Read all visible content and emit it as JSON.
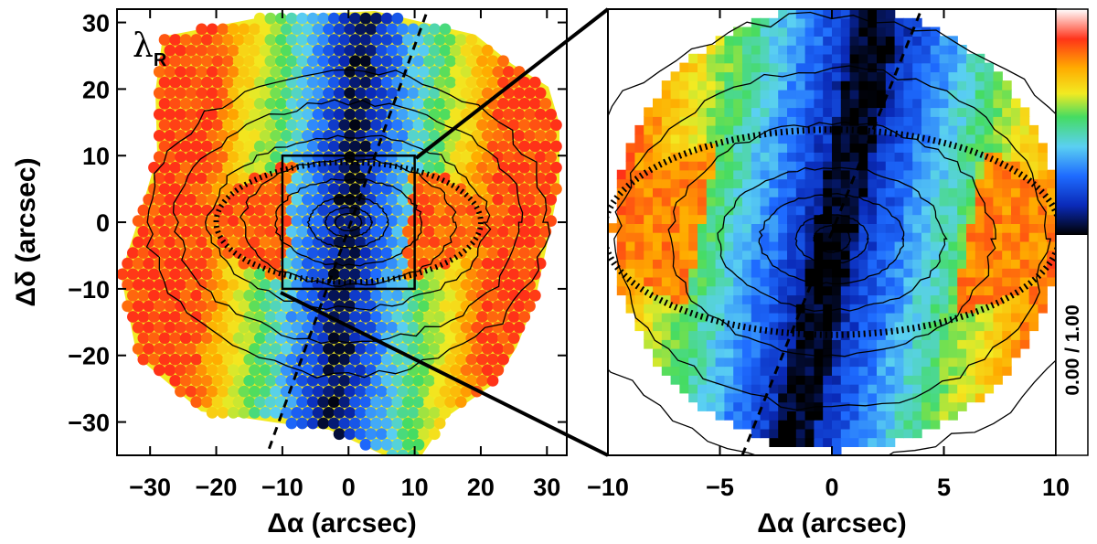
{
  "chart_data": [
    {
      "type": "heatmap",
      "panel": "left",
      "quantity_label": "λ",
      "quantity_subscript": "R",
      "xlabel": "Δα  (arcsec)",
      "ylabel": "Δδ  (arcsec)",
      "xlim": [
        -35,
        33
      ],
      "ylim": [
        -35,
        32
      ],
      "xticks": [
        -30,
        -20,
        -10,
        0,
        10,
        20,
        30
      ],
      "yticks": [
        -30,
        -20,
        -10,
        0,
        10,
        20,
        30
      ],
      "xtick_labels": [
        "−30",
        "−20",
        "−10",
        "0",
        "10",
        "20",
        "30"
      ],
      "ytick_labels": [
        "−30",
        "−20",
        "−10",
        "0",
        "10",
        "20",
        "30"
      ],
      "zoom_box": {
        "x": [
          -10,
          10
        ],
        "y": [
          -10,
          10
        ]
      },
      "dashed_axis": {
        "from": [
          -12,
          -34
        ],
        "to": [
          12,
          32
        ]
      },
      "ellipse": {
        "center": [
          0,
          0
        ],
        "semi_major": 20,
        "semi_minor": 9
      },
      "colormap": "dark-black center to blue, cyan, green, yellow, orange, red outward",
      "color_stops": [
        "#000000",
        "#0a2ab8",
        "#1e6bff",
        "#5ad0f2",
        "#45dc62",
        "#f2ea22",
        "#ffab00",
        "#ff3218"
      ]
    },
    {
      "type": "heatmap",
      "panel": "right",
      "xlabel": "Δα  (arcsec)",
      "xlim": [
        -10,
        10
      ],
      "ylim": [
        -10,
        10
      ],
      "xticks": [
        -10,
        -5,
        0,
        5,
        10
      ],
      "xtick_labels": [
        "−10",
        "−5",
        "0",
        "5",
        "10"
      ],
      "dashed_axis": {
        "from": [
          -4,
          -10
        ],
        "to": [
          4,
          10
        ]
      },
      "ellipse": {
        "center": [
          0,
          0
        ],
        "semi_major": 10.2,
        "semi_minor": 4.6
      },
      "field_circle_radius": 10
    },
    {
      "type": "colorbar",
      "vmin": 0.0,
      "vmax": 1.0,
      "range_label": "0.00 / 1.00",
      "colors_bottom_to_top": [
        "#ffffff",
        "#000000",
        "#0a2ab8",
        "#1e6bff",
        "#5ad0f2",
        "#45dc62",
        "#f2ea22",
        "#ffab00",
        "#ff3218",
        "#ffffff"
      ]
    }
  ]
}
